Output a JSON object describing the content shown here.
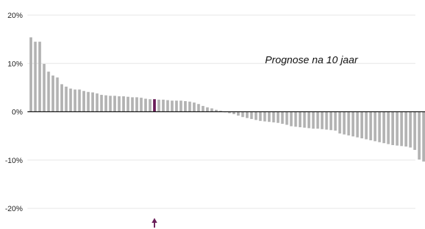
{
  "chart_data": {
    "type": "bar",
    "annotation": "Prognose na 10 jaar",
    "ylim": [
      -20,
      20
    ],
    "y_ticks": [
      {
        "value": 20,
        "label": "20%"
      },
      {
        "value": 10,
        "label": "10%"
      },
      {
        "value": 0,
        "label": "0%"
      },
      {
        "value": -10,
        "label": "-10%"
      },
      {
        "value": -20,
        "label": "-20%"
      }
    ],
    "grid": true,
    "bar_color": "#b3b3b3",
    "highlight_color": "#6b1f5a",
    "zero_line_color": "#111111",
    "grid_color": "#e6e6e6",
    "highlight_index": 28,
    "highlight_marker": "arrow-up",
    "values": [
      15.4,
      14.5,
      14.5,
      9.9,
      8.3,
      7.5,
      7.1,
      5.7,
      5.2,
      4.8,
      4.6,
      4.6,
      4.3,
      4.1,
      4.0,
      3.8,
      3.5,
      3.4,
      3.3,
      3.3,
      3.2,
      3.2,
      3.1,
      3.0,
      3.0,
      2.9,
      2.7,
      2.6,
      2.6,
      2.5,
      2.5,
      2.4,
      2.3,
      2.3,
      2.3,
      2.2,
      2.1,
      1.9,
      1.6,
      1.2,
      0.9,
      0.7,
      0.4,
      0.2,
      -0.1,
      -0.3,
      -0.5,
      -0.8,
      -1.1,
      -1.3,
      -1.5,
      -1.7,
      -1.9,
      -2.0,
      -2.1,
      -2.2,
      -2.3,
      -2.5,
      -2.7,
      -3.0,
      -3.1,
      -3.2,
      -3.3,
      -3.4,
      -3.5,
      -3.5,
      -3.6,
      -3.7,
      -3.8,
      -3.9,
      -4.5,
      -4.7,
      -4.9,
      -5.1,
      -5.3,
      -5.5,
      -5.7,
      -5.9,
      -6.1,
      -6.3,
      -6.5,
      -6.7,
      -6.9,
      -7.0,
      -7.1,
      -7.2,
      -7.4,
      -7.9,
      -9.9,
      -10.3
    ]
  }
}
